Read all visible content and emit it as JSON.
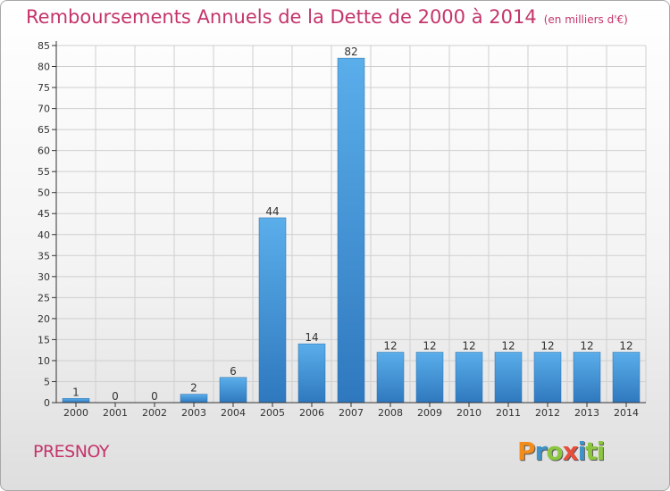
{
  "chart_data": {
    "type": "bar",
    "title": "Remboursements Annuels de la Dette de 2000 à 2014",
    "subtitle": "(en milliers d'€)",
    "categories": [
      "2000",
      "2001",
      "2002",
      "2003",
      "2004",
      "2005",
      "2006",
      "2007",
      "2008",
      "2009",
      "2010",
      "2011",
      "2012",
      "2013",
      "2014"
    ],
    "values": [
      1,
      0,
      0,
      2,
      6,
      44,
      14,
      82,
      12,
      12,
      12,
      12,
      12,
      12,
      12
    ],
    "ylim": [
      0,
      85
    ],
    "yticks": [
      0,
      5,
      10,
      15,
      20,
      25,
      30,
      35,
      40,
      45,
      50,
      55,
      60,
      65,
      70,
      75,
      80,
      85
    ],
    "grid": true,
    "legend": "none",
    "colors": {
      "bar_light": "#5aaeea",
      "bar_dark": "#2f78be",
      "grid": "#cfcfcf",
      "title": "#c4346b"
    }
  },
  "footer": {
    "commune": "PRESNOY",
    "logo": [
      "P",
      "r",
      "o",
      "x",
      "i",
      "ti"
    ]
  }
}
